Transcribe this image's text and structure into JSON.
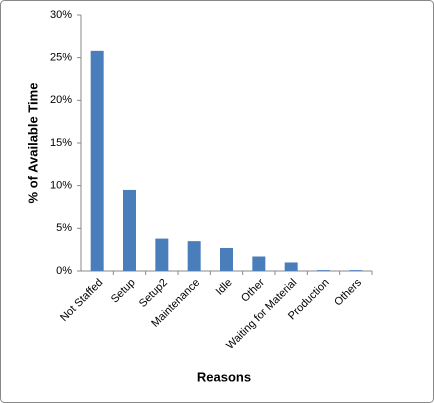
{
  "chart_data": {
    "type": "bar",
    "x_label": "Reasons",
    "y_label": "% of Available Time",
    "categories": [
      "Not Staffed",
      "Setup",
      "Setup2",
      "Maintenance",
      "Idle",
      "Other",
      "Waiting for Material",
      "Production",
      "Others"
    ],
    "values": [
      25.8,
      9.5,
      3.8,
      3.5,
      2.7,
      1.7,
      1.0,
      0.1,
      0.1
    ],
    "color": "#4a7ebb",
    "ylim": [
      0,
      30
    ],
    "yticks": [
      {
        "value": 0,
        "label": "0%"
      },
      {
        "value": 5,
        "label": "5%"
      },
      {
        "value": 10,
        "label": "10%"
      },
      {
        "value": 15,
        "label": "15%"
      },
      {
        "value": 20,
        "label": "20%"
      },
      {
        "value": 25,
        "label": "25%"
      },
      {
        "value": 30,
        "label": "30%"
      }
    ],
    "grid": false
  }
}
